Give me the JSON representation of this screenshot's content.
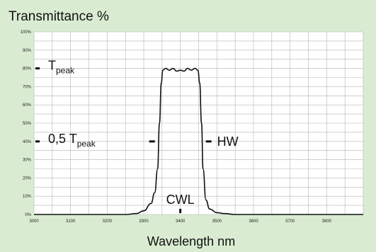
{
  "chart_data": {
    "type": "line",
    "title": "Transmittance %",
    "xlabel": "Wavelength  nm",
    "ylabel": "",
    "xlim": [
      3000,
      3900
    ],
    "ylim": [
      0,
      100
    ],
    "x_ticks": [
      "3000",
      "3100",
      "3200",
      "3300",
      "3400",
      "3500",
      "3600",
      "3700",
      "3800"
    ],
    "y_ticks": [
      "0%",
      "10%",
      "20%",
      "30%",
      "40%",
      "50%",
      "60%",
      "70%",
      "80%",
      "90%",
      "100%"
    ],
    "grid": true,
    "series": [
      {
        "x": [
          3000,
          3250,
          3280,
          3300,
          3320,
          3330,
          3338,
          3343,
          3348,
          3352,
          3360,
          3370,
          3380,
          3390,
          3400,
          3410,
          3420,
          3430,
          3440,
          3448,
          3453,
          3458,
          3462,
          3470,
          3480,
          3500,
          3520,
          3550,
          3900
        ],
        "y": [
          0,
          0,
          0.5,
          2,
          6,
          12,
          25,
          50,
          72,
          79,
          80,
          79,
          80,
          78.5,
          79,
          78.5,
          80,
          79,
          80,
          79,
          72,
          50,
          25,
          8,
          3,
          1,
          0.5,
          0,
          0
        ]
      }
    ],
    "annotations": {
      "tpeak": {
        "main": "T",
        "sub": "peak",
        "value": 80
      },
      "half": {
        "main": "0,5 T",
        "sub": "peak",
        "value": 40
      },
      "hw": {
        "label": "HW",
        "value": 40,
        "x_left": 3342,
        "x_right": 3458
      },
      "cwl": {
        "label": "CWL",
        "x": 3400
      }
    }
  },
  "colors": {
    "background": "#d9ecd2",
    "plot": "#ffffff",
    "grid": "#b5b5b5",
    "line": "#111111"
  }
}
